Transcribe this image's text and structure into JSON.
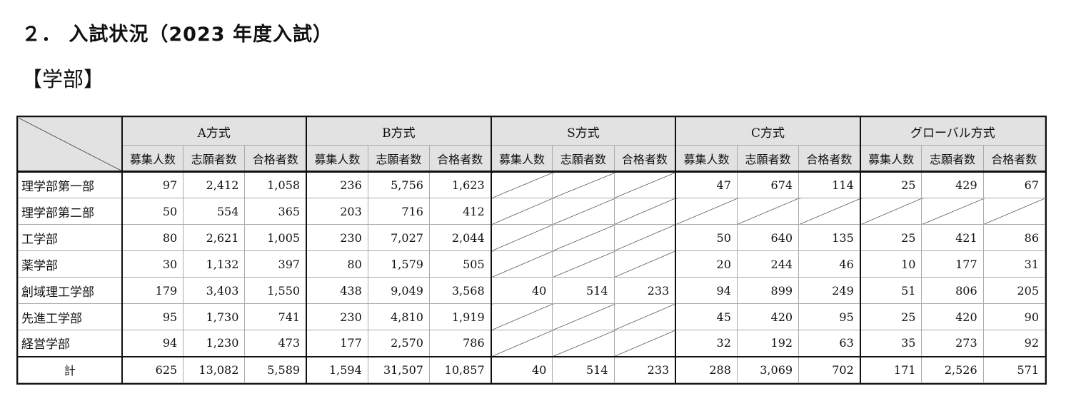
{
  "heading": "２． 入試状況（2023 年度入試）",
  "subheading": "【学部】",
  "table": {
    "groups": [
      "A方式",
      "B方式",
      "S方式",
      "C方式",
      "グローバル方式"
    ],
    "subcolumns": [
      "募集人数",
      "志願者数",
      "合格者数"
    ],
    "rows": [
      {
        "name": "理学部第一部",
        "values": [
          "97",
          "2,412",
          "1,058",
          "236",
          "5,756",
          "1,623",
          null,
          null,
          null,
          "47",
          "674",
          "114",
          "25",
          "429",
          "67"
        ]
      },
      {
        "name": "理学部第二部",
        "values": [
          "50",
          "554",
          "365",
          "203",
          "716",
          "412",
          null,
          null,
          null,
          null,
          null,
          null,
          null,
          null,
          null
        ]
      },
      {
        "name": "工学部",
        "values": [
          "80",
          "2,621",
          "1,005",
          "230",
          "7,027",
          "2,044",
          null,
          null,
          null,
          "50",
          "640",
          "135",
          "25",
          "421",
          "86"
        ]
      },
      {
        "name": "薬学部",
        "values": [
          "30",
          "1,132",
          "397",
          "80",
          "1,579",
          "505",
          null,
          null,
          null,
          "20",
          "244",
          "46",
          "10",
          "177",
          "31"
        ]
      },
      {
        "name": "創域理工学部",
        "values": [
          "179",
          "3,403",
          "1,550",
          "438",
          "9,049",
          "3,568",
          "40",
          "514",
          "233",
          "94",
          "899",
          "249",
          "51",
          "806",
          "205"
        ]
      },
      {
        "name": "先進工学部",
        "values": [
          "95",
          "1,730",
          "741",
          "230",
          "4,810",
          "1,919",
          null,
          null,
          null,
          "45",
          "420",
          "95",
          "25",
          "420",
          "90"
        ]
      },
      {
        "name": "経営学部",
        "values": [
          "94",
          "1,230",
          "473",
          "177",
          "2,570",
          "786",
          null,
          null,
          null,
          "32",
          "192",
          "63",
          "35",
          "273",
          "92"
        ]
      }
    ],
    "total": {
      "name": "計",
      "values": [
        "625",
        "13,082",
        "5,589",
        "1,594",
        "31,507",
        "10,857",
        "40",
        "514",
        "233",
        "288",
        "3,069",
        "702",
        "171",
        "2,526",
        "571"
      ]
    }
  }
}
